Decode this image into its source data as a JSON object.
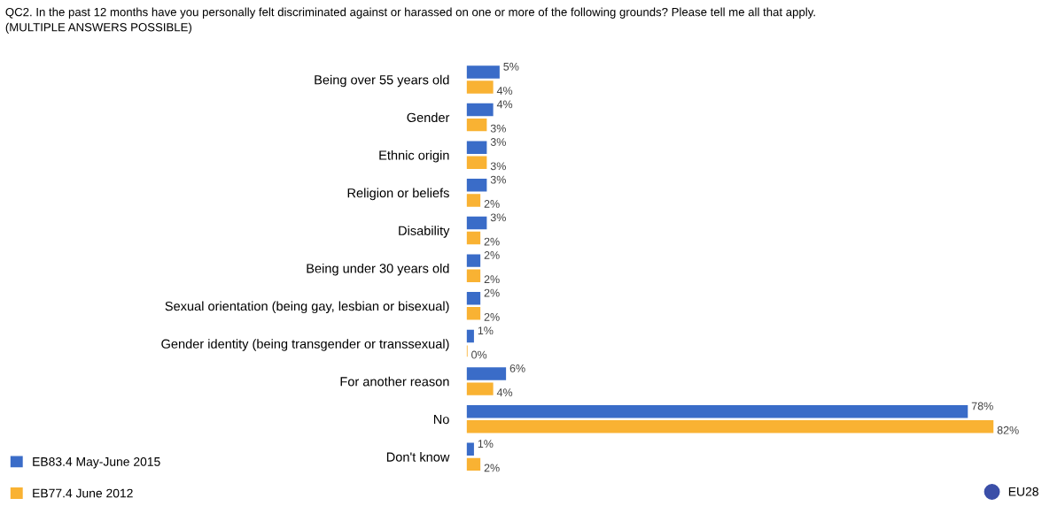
{
  "chart_data": {
    "type": "bar",
    "orientation": "horizontal",
    "title": "QC2. In the past 12 months have you personally felt discriminated against or harassed on one or more of the following grounds? Please tell me all that apply.",
    "subtitle": "(MULTIPLE ANSWERS POSSIBLE)",
    "categories": [
      "Being over 55 years old",
      "Gender",
      "Ethnic origin",
      "Religion or beliefs",
      "Disability",
      "Being under 30 years old",
      "Sexual orientation (being gay, lesbian or bisexual)",
      "Gender identity (being transgender or transsexual)",
      "For another reason",
      "No",
      "Don't know"
    ],
    "series": [
      {
        "name": "EB83.4 May-June 2015",
        "color": "#3a6cc8",
        "values": [
          5,
          4,
          3,
          3,
          3,
          2,
          2,
          1,
          6,
          78,
          1
        ],
        "value_labels": [
          "5%",
          "4%",
          "3%",
          "3%",
          "3%",
          "2%",
          "2%",
          "1%",
          "6%",
          "78%",
          "1%"
        ]
      },
      {
        "name": "EB77.4 June 2012",
        "color": "#f9b233",
        "values": [
          4,
          3,
          3,
          2,
          2,
          2,
          2,
          0,
          4,
          82,
          2
        ],
        "value_labels": [
          "4%",
          "3%",
          "3%",
          "2%",
          "2%",
          "2%",
          "2%",
          "0%",
          "4%",
          "82%",
          "2%"
        ]
      }
    ],
    "legend": "bottom left",
    "grid": false,
    "annotations": [
      "EU28"
    ]
  }
}
